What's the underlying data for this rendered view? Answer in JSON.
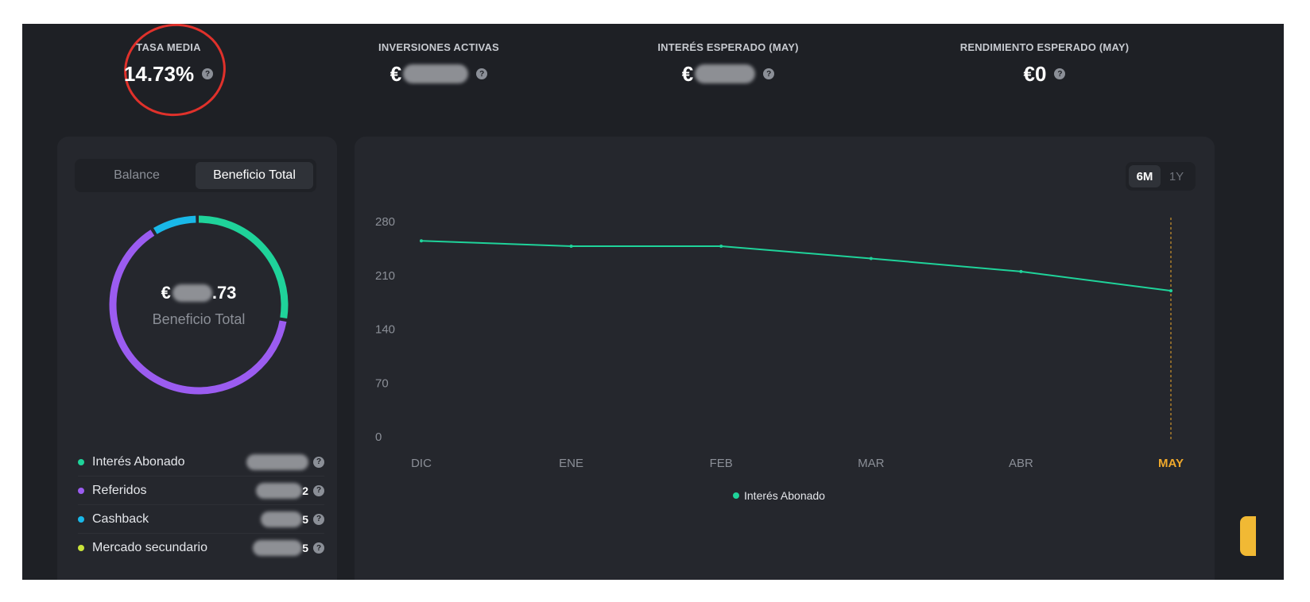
{
  "stats": [
    {
      "label": "TASA MEDIA",
      "value": "14.73%",
      "help": "?"
    },
    {
      "label": "INVERSIONES ACTIVAS",
      "value": "€",
      "help": "?"
    },
    {
      "label": "INTERÉS ESPERADO (MAY)",
      "value": "€",
      "help": "?"
    },
    {
      "label": "RENDIMIENTO ESPERADO (MAY)",
      "value": "€0",
      "help": "?"
    }
  ],
  "left_panel": {
    "tabs": [
      "Balance",
      "Beneficio Total"
    ],
    "active_tab": "Beneficio Total",
    "donut": {
      "value_prefix": "€",
      "value_suffix": ".73",
      "caption": "Beneficio Total",
      "segments": [
        {
          "name": "Interés Abonado",
          "color": "#1fd39a",
          "fraction": 0.28
        },
        {
          "name": "Referidos",
          "color": "#9b5cf0",
          "fraction": 0.635
        },
        {
          "name": "Cashback",
          "color": "#19b8e8",
          "fraction": 0.085
        }
      ]
    },
    "legend": [
      {
        "label": "Interés Abonado",
        "color": "#1fd39a",
        "value_suffix": "",
        "help": "?"
      },
      {
        "label": "Referidos",
        "color": "#9b5cf0",
        "value_suffix": "2",
        "help": "?"
      },
      {
        "label": "Cashback",
        "color": "#19b8e8",
        "value_suffix": "5",
        "help": "?"
      },
      {
        "label": "Mercado secundario",
        "color": "#c9e33a",
        "value_suffix": "5",
        "help": "?"
      }
    ]
  },
  "right_panel": {
    "ranges": [
      "6M",
      "1Y"
    ],
    "active_range": "6M"
  },
  "colors": {
    "line": "#1fd39a",
    "highlight": "#f0a92c",
    "axis_text": "#8b8f97"
  },
  "chart_data": {
    "type": "line",
    "categories": [
      "DIC",
      "ENE",
      "FEB",
      "MAR",
      "ABR",
      "MAY"
    ],
    "series": [
      {
        "name": "Interés Abonado",
        "values": [
          255,
          248,
          248,
          232,
          215,
          190
        ]
      }
    ],
    "y_ticks": [
      0,
      70,
      140,
      210,
      280
    ],
    "ylim": [
      0,
      280
    ],
    "highlight_category": "MAY",
    "legend_position": "bottom-center",
    "grid": false
  }
}
